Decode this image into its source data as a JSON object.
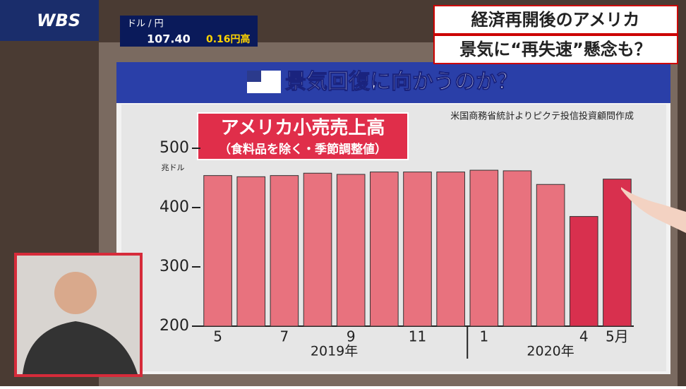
{
  "logo": "WBS",
  "ticker": {
    "pair": "ドル / 円",
    "rate": "107.40",
    "change": "0.16円高"
  },
  "caption": {
    "line1": "経済再開後のアメリカ",
    "line2": "景気に“再失速”懸念も？"
  },
  "board_header": "景気回復に向かうのか？",
  "chart_data": {
    "type": "bar",
    "title": "アメリカ小売売上高",
    "subtitle": "（食料品を除く・季節調整値）",
    "source": "米国商務省統計よりピクテ投信投資顧問作成",
    "y_unit": "兆ドル",
    "categories": [
      "5",
      null,
      "7",
      null,
      "9",
      null,
      "11",
      null,
      "1",
      null,
      null,
      "4",
      "5月"
    ],
    "groups": [
      "2019年",
      "2020年"
    ],
    "values": [
      454,
      452,
      454,
      458,
      456,
      460,
      460,
      460,
      463,
      462,
      439,
      385,
      448
    ],
    "colors": [
      "#e8727e",
      "#e8727e",
      "#e8727e",
      "#e8727e",
      "#e8727e",
      "#e8727e",
      "#e8727e",
      "#e8727e",
      "#e8727e",
      "#e8727e",
      "#e8727e",
      "#d8304e",
      "#d8304e"
    ],
    "ylim": [
      200,
      500
    ],
    "yticks": [
      200,
      300,
      400,
      500
    ],
    "grid": false
  }
}
